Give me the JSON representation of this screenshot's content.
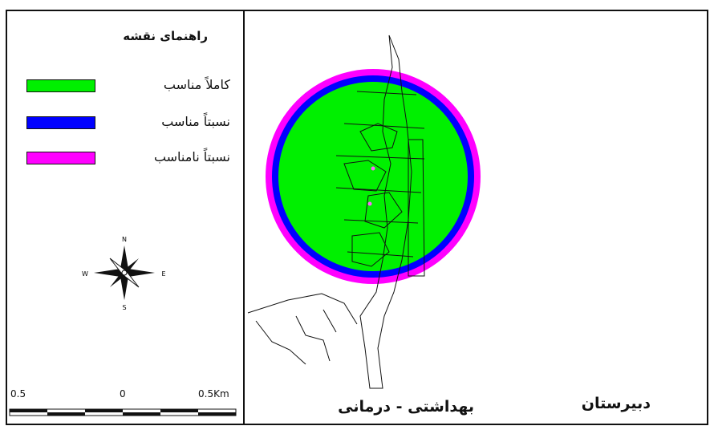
{
  "legend": {
    "title": "راهنمای نقشه",
    "items": [
      {
        "label": "کاملاً مناسب",
        "color": "#00f000"
      },
      {
        "label": "نسبتاً مناسب",
        "color": "#0000ff"
      },
      {
        "label": "نسبتاً نامناسب",
        "color": "#ff00ff"
      }
    ]
  },
  "compass": {
    "n": "N",
    "s": "S",
    "e": "E",
    "w": "W"
  },
  "scale": {
    "left": "0.5",
    "center": "0",
    "right": "0.5Km"
  },
  "maps": {
    "health": {
      "label": "بهداشتی - درمانی"
    },
    "school": {
      "label": "دبیرستان"
    }
  }
}
